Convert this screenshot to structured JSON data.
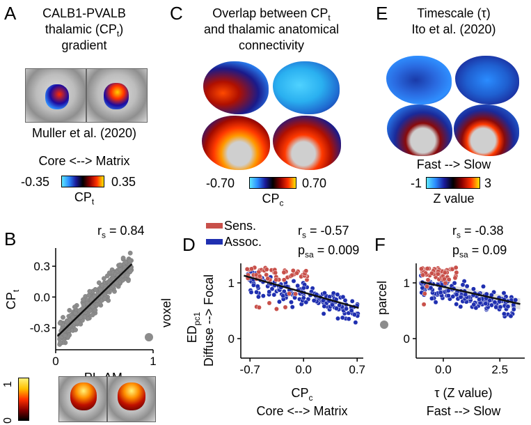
{
  "panels": {
    "A": {
      "letter": "A",
      "title_line1": "CALB1-PVALB",
      "title_line2": "thalamic (CP",
      "title_sub": "t",
      "title_line2_end": ")",
      "title_line3": "gradient",
      "citation": "Muller et al. (2020)",
      "axis_text": "Core <--> Matrix",
      "cbar_min": "-0.35",
      "cbar_max": "0.35",
      "cbar_label": "CP",
      "cbar_label_sub": "t"
    },
    "C": {
      "letter": "C",
      "title_line1": "Overlap between CP",
      "title_sub": "t",
      "title_line2": "and thalamic anatomical",
      "title_line3": "connectivity",
      "cbar_min": "-0.70",
      "cbar_max": "0.70",
      "cbar_label": "CP",
      "cbar_label_sub": "c"
    },
    "E": {
      "letter": "E",
      "title_line1": "Timescale (τ)",
      "title_line2": "Ito et al. (2020)",
      "axis_text": "Fast --> Slow",
      "cbar_min": "-1",
      "cbar_max": "3",
      "cbar_label": "Z value"
    },
    "B": {
      "letter": "B",
      "stat_label": "r",
      "stat_sub": "s",
      "stat_value": " = 0.84",
      "legend": "voxel",
      "cbar_min": "0",
      "cbar_max": "1"
    },
    "D": {
      "letter": "D",
      "stat1_label": "r",
      "stat1_sub": "s",
      "stat1_value": " = -0.57",
      "stat2_label": "p",
      "stat2_sub": "sa",
      "stat2_value": " = 0.009",
      "legend_sens": "Sens.",
      "legend_assoc": "Assoc."
    },
    "F": {
      "letter": "F",
      "stat1_label": "r",
      "stat1_sub": "s",
      "stat1_value": " = -0.38",
      "stat2_label": "p",
      "stat2_sub": "sa",
      "stat2_value": " = 0.09",
      "legend": "parcel"
    }
  },
  "colors": {
    "sens": "#c8504a",
    "assoc": "#1f2fb0",
    "voxel": "#8c8c8c",
    "fit": "#111111"
  },
  "chart_data": [
    {
      "id": "B",
      "type": "scatter",
      "title": "",
      "xlabel": "PL-AM",
      "xlabel_sub": "t",
      "ylabel": "CP",
      "ylabel_sub": "t",
      "xlim": [
        0,
        1
      ],
      "ylim": [
        -0.5,
        0.45
      ],
      "xticks": [
        "0",
        "1"
      ],
      "yticks": [
        "0.3",
        "0.0",
        "-0.3"
      ],
      "ytick_values": [
        0.3,
        0.0,
        -0.3
      ],
      "xtick_values": [
        0,
        1
      ],
      "fit_line": [
        [
          0.02,
          -0.38
        ],
        [
          0.78,
          0.32
        ]
      ],
      "series": [
        {
          "name": "voxel",
          "point_count": 400
        }
      ]
    },
    {
      "id": "D",
      "type": "scatter",
      "xlabel": "CP",
      "xlabel_sub": "c",
      "xlabel2": "Core <--> Matrix",
      "ylabel": "ED",
      "ylabel_sub": "pc1",
      "ylabel2": "Diffuse --> Focal",
      "xlim": [
        -0.82,
        0.78
      ],
      "ylim": [
        -0.3,
        1.35
      ],
      "xticks": [
        "-0.7",
        "0.0",
        "0.7"
      ],
      "xtick_values": [
        -0.7,
        0.0,
        0.7
      ],
      "yticks": [
        "1",
        "0"
      ],
      "ytick_values": [
        1,
        0
      ],
      "fit_line": [
        [
          -0.78,
          1.13
        ],
        [
          0.72,
          0.55
        ]
      ],
      "series": [
        {
          "name": "Sens.",
          "point_count": 55
        },
        {
          "name": "Assoc.",
          "point_count": 170
        }
      ]
    },
    {
      "id": "F",
      "type": "scatter",
      "xlabel": "τ (Z value)",
      "xlabel2": "Fast --> Slow",
      "xlim": [
        -1.2,
        3.6
      ],
      "ylim": [
        -0.3,
        1.35
      ],
      "xticks": [
        "0.0",
        "2.5"
      ],
      "xtick_values": [
        0.0,
        2.5
      ],
      "yticks": [
        "1",
        "0"
      ],
      "ytick_values": [
        1,
        0
      ],
      "fit_line": [
        [
          -1.0,
          1.02
        ],
        [
          3.4,
          0.62
        ]
      ],
      "series": [
        {
          "name": "Sens.",
          "point_count": 55
        },
        {
          "name": "Assoc.",
          "point_count": 170
        }
      ]
    }
  ]
}
